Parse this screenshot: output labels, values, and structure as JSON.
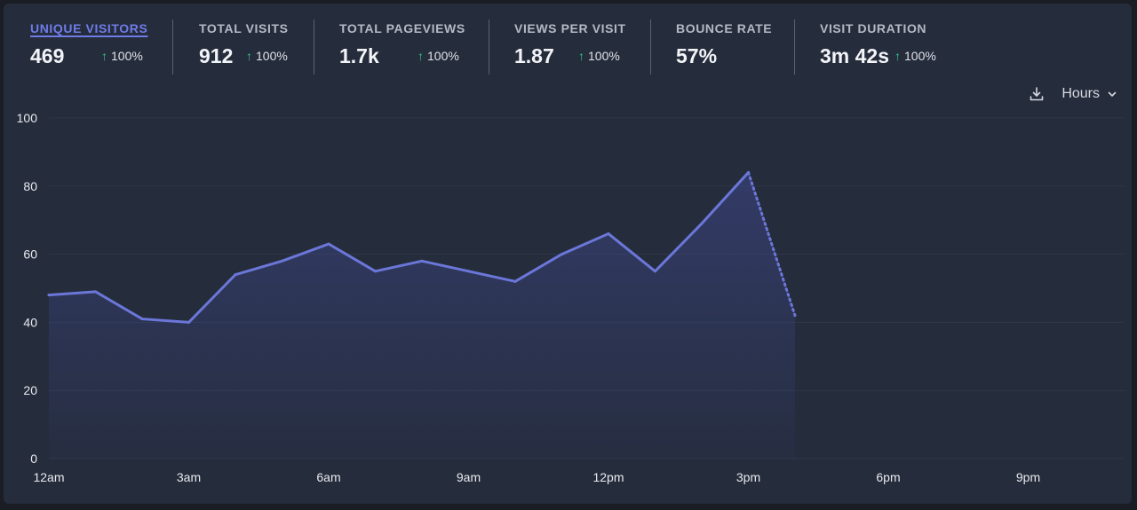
{
  "metrics": [
    {
      "label": "UNIQUE VISITORS",
      "value": "469",
      "change": "100%",
      "active": true
    },
    {
      "label": "TOTAL VISITS",
      "value": "912",
      "change": "100%"
    },
    {
      "label": "TOTAL PAGEVIEWS",
      "value": "1.7k",
      "change": "100%"
    },
    {
      "label": "VIEWS PER VISIT",
      "value": "1.87",
      "change": "100%"
    },
    {
      "label": "BOUNCE RATE",
      "value": "57%",
      "change": ""
    },
    {
      "label": "VISIT DURATION",
      "value": "3m 42s",
      "change": "100%"
    }
  ],
  "toolbar": {
    "download_icon": "download-icon",
    "interval_label": "Hours",
    "interval_icon": "chevron-down-icon"
  },
  "colors": {
    "line": "#6b77d8",
    "change_up": "#35c98a",
    "active_metric": "#6f7ce8"
  },
  "chart_data": {
    "type": "line",
    "title": "",
    "xlabel": "",
    "ylabel": "",
    "ylim": [
      0,
      100
    ],
    "yticks": [
      "0",
      "20",
      "40",
      "60",
      "80",
      "100"
    ],
    "xticks": [
      "12am",
      "3am",
      "6am",
      "9am",
      "12pm",
      "3pm",
      "6pm",
      "9pm"
    ],
    "x_hours": [
      0,
      1,
      2,
      3,
      4,
      5,
      6,
      7,
      8,
      9,
      10,
      11,
      12,
      13,
      14,
      15,
      16
    ],
    "values": [
      48,
      49,
      41,
      40,
      54,
      58,
      63,
      55,
      58,
      55,
      52,
      60,
      66,
      55,
      69,
      84,
      42
    ],
    "partial_last_point": true,
    "grid": true
  }
}
